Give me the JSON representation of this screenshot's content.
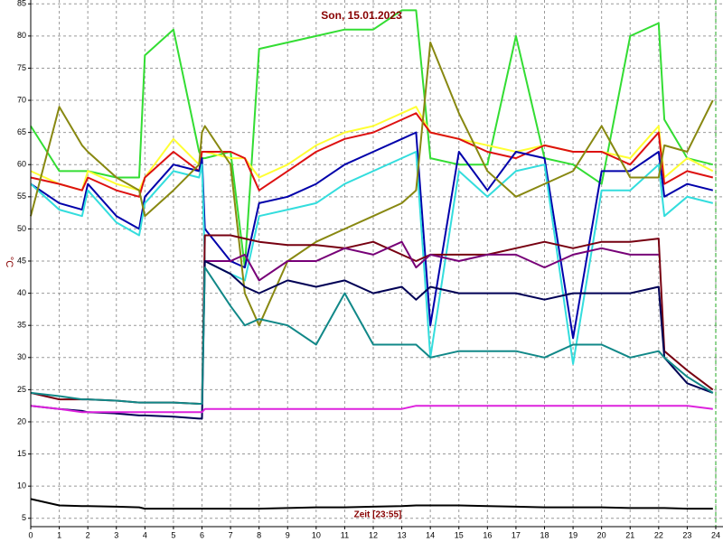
{
  "chart_data": {
    "type": "line",
    "title": "Son, 15.01.2023",
    "x_label": "Zeit [23:55]",
    "y_label": "°C",
    "x": [
      0,
      1,
      1.8,
      2,
      3,
      3.8,
      4,
      5,
      5.9,
      6,
      6.1,
      7,
      7.5,
      8,
      9,
      10,
      11,
      12,
      13,
      13.5,
      14,
      15,
      16,
      17,
      18,
      19,
      20,
      21,
      22,
      22.2,
      23,
      23.9
    ],
    "xlim": [
      0,
      24
    ],
    "xticks": [
      0,
      1,
      2,
      3,
      4,
      5,
      6,
      7,
      8,
      9,
      10,
      11,
      12,
      13,
      14,
      15,
      16,
      17,
      18,
      19,
      20,
      21,
      22,
      23,
      24
    ],
    "ylim": [
      3.7,
      85.6
    ],
    "yticks": [
      5,
      10,
      15,
      20,
      25,
      30,
      35,
      40,
      45,
      50,
      55,
      60,
      65,
      70,
      75,
      80,
      85
    ],
    "grid": true,
    "series": [
      {
        "color": "#33dd33",
        "values": [
          66,
          59,
          59,
          59,
          58,
          58,
          77,
          81,
          62,
          61,
          61,
          62,
          44,
          78,
          79,
          80,
          81,
          81,
          84,
          84,
          61,
          60,
          60,
          80,
          61,
          60,
          57,
          80,
          82,
          67,
          61,
          60
        ]
      },
      {
        "color": "#ffff33",
        "values": [
          59,
          57,
          56,
          59,
          57,
          56,
          58,
          64,
          60,
          62,
          62,
          61,
          61,
          58,
          60,
          63,
          65,
          66,
          68,
          69,
          65,
          64,
          63,
          62,
          63,
          62,
          62,
          61,
          66,
          58,
          61,
          59
        ]
      },
      {
        "color": "#dd1111",
        "values": [
          58,
          57,
          56,
          58,
          56,
          55,
          58,
          62,
          59,
          62,
          62,
          62,
          61,
          56,
          59,
          62,
          64,
          65,
          67,
          68,
          65,
          64,
          62,
          61,
          63,
          62,
          62,
          60,
          65,
          57,
          59,
          58
        ]
      },
      {
        "color": "#0000aa",
        "values": [
          57,
          54,
          53,
          57,
          52,
          50,
          55,
          60,
          59,
          61,
          50,
          45,
          44,
          54,
          55,
          57,
          60,
          62,
          64,
          65,
          35,
          62,
          56,
          62,
          61,
          33,
          59,
          59,
          62,
          55,
          57,
          56
        ]
      },
      {
        "color": "#33dddd",
        "values": [
          57,
          53,
          52,
          56,
          51,
          49,
          54,
          59,
          58,
          60,
          45,
          43,
          42,
          52,
          53,
          54,
          57,
          59,
          61,
          62,
          30,
          59,
          55,
          59,
          60,
          29,
          56,
          56,
          60,
          52,
          55,
          54
        ]
      },
      {
        "color": "#888811",
        "values": [
          52,
          69,
          63,
          62,
          58,
          56,
          52,
          56,
          60,
          65,
          66,
          60,
          40,
          35,
          45,
          48,
          50,
          52,
          54,
          56,
          79,
          68,
          59,
          55,
          57,
          59,
          66,
          58,
          58,
          63,
          62,
          70
        ]
      },
      {
        "color": "#770011",
        "values": [
          24.5,
          23.5,
          23.5,
          23.5,
          23.3,
          23,
          23,
          23,
          22.8,
          22.8,
          49,
          49,
          48.5,
          48,
          47.5,
          47.5,
          47,
          48,
          46,
          45,
          46,
          46,
          46,
          47,
          48,
          47,
          48,
          48,
          48.5,
          31,
          28,
          25
        ]
      },
      {
        "color": "#770077",
        "values": [
          null,
          null,
          null,
          null,
          null,
          null,
          null,
          null,
          null,
          null,
          45,
          45,
          46,
          42,
          45,
          45,
          47,
          46,
          48,
          44,
          46,
          45,
          46,
          46,
          44,
          46,
          47,
          46,
          46,
          null,
          null,
          null
        ]
      },
      {
        "color": "#000055",
        "values": [
          22.5,
          22,
          21.7,
          21.5,
          21.3,
          21,
          21,
          20.8,
          20.5,
          20.5,
          45,
          43,
          41,
          40,
          42,
          41,
          42,
          40,
          41,
          39,
          41,
          40,
          40,
          40,
          39,
          40,
          40,
          40,
          41,
          30,
          26,
          24.5
        ]
      },
      {
        "color": "#118888",
        "values": [
          24.5,
          24,
          23.5,
          23.5,
          23.3,
          23,
          23,
          23,
          22.8,
          22.8,
          44,
          38,
          35,
          36,
          35,
          32,
          40,
          32,
          32,
          32,
          30,
          31,
          31,
          31,
          30,
          32,
          32,
          30,
          31,
          30,
          27,
          24.5
        ]
      },
      {
        "color": "#dd22dd",
        "values": [
          22.5,
          22,
          21.5,
          21.5,
          21.5,
          21.5,
          21.5,
          21.5,
          21.5,
          21.5,
          22,
          22,
          22,
          22,
          22,
          22,
          22,
          22,
          22,
          22.5,
          22.5,
          22.5,
          22.5,
          22.5,
          22.5,
          22.5,
          22.5,
          22.5,
          22.5,
          22.5,
          22.5,
          22
        ]
      },
      {
        "color": "#000000",
        "values": [
          8,
          7,
          6.9,
          6.9,
          6.8,
          6.7,
          6.5,
          6.5,
          6.5,
          6.5,
          6.5,
          6.5,
          6.5,
          6.5,
          6.6,
          6.7,
          6.7,
          6.8,
          6.9,
          7,
          7,
          7,
          6.9,
          6.8,
          6.7,
          6.7,
          6.7,
          6.6,
          6.6,
          6.6,
          6.5,
          6.5
        ]
      }
    ]
  }
}
